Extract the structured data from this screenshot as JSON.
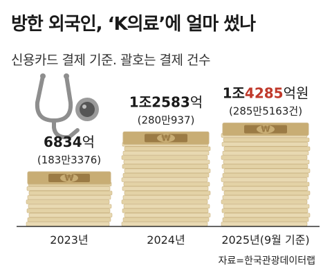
{
  "title": "방한 외국인, ‘K의료’에 얼마 썼나",
  "subtitle": "신용카드 결제 기준. 괄호는 결제 건수",
  "source": "자료=한국관광데이터랩",
  "chart_data": {
    "type": "bar",
    "categories": [
      "2023년",
      "2024년",
      "2025년(9월 기준)"
    ],
    "values": [
      6834,
      12583,
      14285
    ],
    "value_unit": "억",
    "value_labels": [
      {
        "pre": "",
        "hl": "",
        "num": "6834",
        "unit": "억"
      },
      {
        "pre": "1조",
        "hl": "",
        "num": "2583",
        "unit": "억"
      },
      {
        "pre": "1조",
        "hl": "4285",
        "num": "",
        "unit": "억원"
      }
    ],
    "counts": [
      1833376,
      2800937,
      2855163
    ],
    "count_labels": [
      "(183만3376)",
      "(280만937)",
      "(285만5163건)"
    ],
    "colors": {
      "edge": "#e3d2a6",
      "edge_dark": "#cbb483",
      "top": "#c8ad74",
      "band": "#9b7b45",
      "highlight": "#c0392b",
      "axis": "#333333"
    },
    "decoration": "stethoscope-icon"
  }
}
